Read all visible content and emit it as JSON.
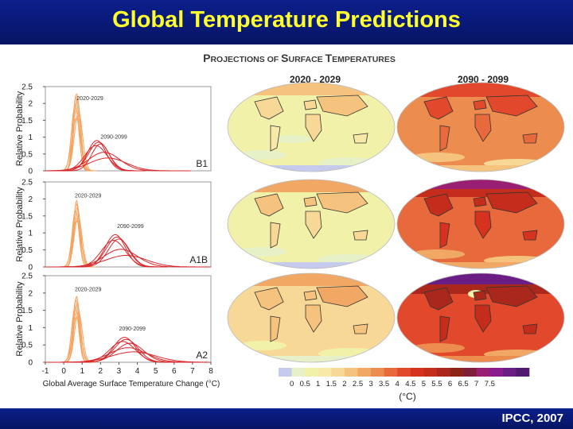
{
  "slide": {
    "title": "Global Temperature Predictions",
    "credit": "IPCC, 2007"
  },
  "figure": {
    "heading_parts": [
      "P",
      "ROJECTIONS OF ",
      "S",
      "URFACE ",
      "T",
      "EMPERATURES"
    ],
    "map_period_labels": [
      "2020 - 2029",
      "2090 - 2099"
    ]
  },
  "colors": {
    "bar_blue": "#0a1a7a",
    "title_yellow": "#ffff2e",
    "near_term_curve": "#f5a25d",
    "late_century_curve": "#d9262b",
    "scale": [
      "#c6cbee",
      "#e7f1c7",
      "#f2f1aa",
      "#f8e9a8",
      "#f8d896",
      "#f6c37f",
      "#f1a865",
      "#ed8c4f",
      "#e86a3c",
      "#e2482c",
      "#d6321f",
      "#c42c1b",
      "#a9281b",
      "#8e2318",
      "#7f1e3b",
      "#9a1f73",
      "#8a1b8e",
      "#6b1d86",
      "#4f1b71"
    ]
  },
  "scale": {
    "tick_labels": [
      "0",
      "0.5",
      "1",
      "1.5",
      "2",
      "2.5",
      "3",
      "3.5",
      "4",
      "4.5",
      "5",
      "5.5",
      "6",
      "6.5",
      "7",
      "7.5"
    ],
    "unit": "(°C)"
  },
  "chart_data": [
    {
      "type": "line",
      "scenario": "B1",
      "xlabel": "",
      "ylabel": "Relative Probability",
      "xlim": [
        -1,
        8
      ],
      "ylim": [
        0,
        2.5
      ],
      "yticks": [
        0,
        0.5,
        1,
        1.5,
        2,
        2.5
      ],
      "annotations": [
        {
          "text": "2020-2029",
          "x": 0.7,
          "y": 2.1,
          "color": "#333333"
        },
        {
          "text": "2090-2099",
          "x": 2.0,
          "y": 0.95,
          "color": "#333333"
        }
      ],
      "series": [
        {
          "group": "2020-2029",
          "color": "#f5a25d",
          "mean": 0.7,
          "sd": 0.18,
          "peak": 2.28
        },
        {
          "group": "2020-2029",
          "color": "#f5a25d",
          "mean": 0.66,
          "sd": 0.17,
          "peak": 2.2
        },
        {
          "group": "2020-2029",
          "color": "#f5a25d",
          "mean": 0.74,
          "sd": 0.19,
          "peak": 2.1
        },
        {
          "group": "2020-2029",
          "color": "#f5a25d",
          "mean": 0.62,
          "sd": 0.2,
          "peak": 1.95
        },
        {
          "group": "2020-2029",
          "color": "#f5a25d",
          "mean": 0.8,
          "sd": 0.22,
          "peak": 1.75
        },
        {
          "group": "2020-2029",
          "color": "#f5a25d",
          "mean": 0.68,
          "sd": 0.24,
          "peak": 1.55
        },
        {
          "group": "2090-2099",
          "color": "#d9262b",
          "mean": 1.8,
          "sd": 0.5,
          "peak": 0.9
        },
        {
          "group": "2090-2099",
          "color": "#d9262b",
          "mean": 1.9,
          "sd": 0.55,
          "peak": 0.85
        },
        {
          "group": "2090-2099",
          "color": "#d9262b",
          "mean": 2.0,
          "sd": 0.48,
          "peak": 0.8
        },
        {
          "group": "2090-2099",
          "color": "#d9262b",
          "mean": 1.75,
          "sd": 0.6,
          "peak": 0.75
        },
        {
          "group": "2090-2099",
          "color": "#d9262b",
          "mean": 2.2,
          "sd": 0.85,
          "peak": 0.55
        },
        {
          "group": "2090-2099",
          "color": "#d9262b",
          "mean": 2.4,
          "sd": 1.0,
          "peak": 0.38
        }
      ]
    },
    {
      "type": "line",
      "scenario": "A1B",
      "xlabel": "",
      "ylabel": "Relative Probability",
      "xlim": [
        -1,
        8
      ],
      "ylim": [
        0,
        2.5
      ],
      "yticks": [
        0,
        0.5,
        1,
        1.5,
        2,
        2.5
      ],
      "annotations": [
        {
          "text": "2020-2029",
          "x": 0.6,
          "y": 2.05,
          "color": "#333333"
        },
        {
          "text": "2090-2099",
          "x": 2.9,
          "y": 1.15,
          "color": "#333333"
        }
      ],
      "series": [
        {
          "group": "2020-2029",
          "color": "#f5a25d",
          "mean": 0.7,
          "sd": 0.16,
          "peak": 1.95
        },
        {
          "group": "2020-2029",
          "color": "#f5a25d",
          "mean": 0.68,
          "sd": 0.17,
          "peak": 1.85
        },
        {
          "group": "2020-2029",
          "color": "#f5a25d",
          "mean": 0.74,
          "sd": 0.18,
          "peak": 1.75
        },
        {
          "group": "2020-2029",
          "color": "#f5a25d",
          "mean": 0.64,
          "sd": 0.19,
          "peak": 1.65
        },
        {
          "group": "2020-2029",
          "color": "#f5a25d",
          "mean": 0.78,
          "sd": 0.21,
          "peak": 1.5
        },
        {
          "group": "2020-2029",
          "color": "#f5a25d",
          "mean": 0.7,
          "sd": 0.23,
          "peak": 1.35
        },
        {
          "group": "2090-2099",
          "color": "#d9262b",
          "mean": 2.8,
          "sd": 0.55,
          "peak": 0.95
        },
        {
          "group": "2090-2099",
          "color": "#d9262b",
          "mean": 2.9,
          "sd": 0.6,
          "peak": 0.88
        },
        {
          "group": "2090-2099",
          "color": "#d9262b",
          "mean": 3.0,
          "sd": 0.58,
          "peak": 0.82
        },
        {
          "group": "2090-2099",
          "color": "#d9262b",
          "mean": 2.7,
          "sd": 0.65,
          "peak": 0.78
        },
        {
          "group": "2090-2099",
          "color": "#d9262b",
          "mean": 3.1,
          "sd": 0.9,
          "peak": 0.52
        },
        {
          "group": "2090-2099",
          "color": "#d9262b",
          "mean": 3.4,
          "sd": 1.1,
          "peak": 0.34
        }
      ]
    },
    {
      "type": "line",
      "scenario": "A2",
      "xlabel": "Global Average Surface Temperature Change (°C)",
      "ylabel": "Relative Probability",
      "xlim": [
        -1,
        8
      ],
      "ylim": [
        0,
        2.5
      ],
      "yticks": [
        0,
        0.5,
        1,
        1.5,
        2,
        2.5
      ],
      "xticks": [
        -1,
        0,
        1,
        2,
        3,
        4,
        5,
        6,
        7,
        8
      ],
      "annotations": [
        {
          "text": "2020-2029",
          "x": 0.6,
          "y": 2.05,
          "color": "#333333"
        },
        {
          "text": "2090-2099",
          "x": 3.0,
          "y": 0.92,
          "color": "#333333"
        }
      ],
      "series": [
        {
          "group": "2020-2029",
          "color": "#f5a25d",
          "mean": 0.7,
          "sd": 0.16,
          "peak": 1.9
        },
        {
          "group": "2020-2029",
          "color": "#f5a25d",
          "mean": 0.66,
          "sd": 0.17,
          "peak": 1.8
        },
        {
          "group": "2020-2029",
          "color": "#f5a25d",
          "mean": 0.74,
          "sd": 0.18,
          "peak": 1.7
        },
        {
          "group": "2020-2029",
          "color": "#f5a25d",
          "mean": 0.62,
          "sd": 0.19,
          "peak": 1.6
        },
        {
          "group": "2020-2029",
          "color": "#f5a25d",
          "mean": 0.8,
          "sd": 0.21,
          "peak": 1.45
        },
        {
          "group": "2020-2029",
          "color": "#f5a25d",
          "mean": 0.7,
          "sd": 0.23,
          "peak": 1.3
        },
        {
          "group": "2090-2099",
          "color": "#d9262b",
          "mean": 3.3,
          "sd": 0.6,
          "peak": 0.72
        },
        {
          "group": "2090-2099",
          "color": "#d9262b",
          "mean": 3.4,
          "sd": 0.65,
          "peak": 0.66
        },
        {
          "group": "2090-2099",
          "color": "#d9262b",
          "mean": 3.2,
          "sd": 0.7,
          "peak": 0.6
        },
        {
          "group": "2090-2099",
          "color": "#d9262b",
          "mean": 3.6,
          "sd": 0.75,
          "peak": 0.55
        },
        {
          "group": "2090-2099",
          "color": "#d9262b",
          "mean": 3.5,
          "sd": 1.0,
          "peak": 0.42
        },
        {
          "group": "2090-2099",
          "color": "#d9262b",
          "mean": 3.8,
          "sd": 1.2,
          "peak": 0.3
        }
      ]
    }
  ]
}
